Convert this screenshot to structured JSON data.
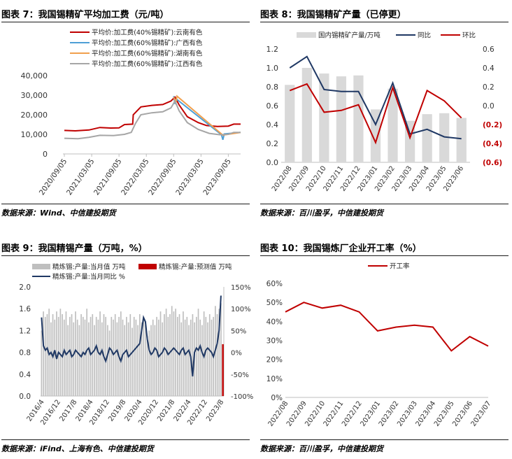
{
  "panels": [
    {
      "title": "图表 7：我国锡精矿平均加工费（元/吨）",
      "source": "数据来源：Wind、中信建投期货",
      "chart_data": {
        "type": "line",
        "title": "",
        "xlabel": "",
        "ylabel": "",
        "ylim": [
          0,
          40000
        ],
        "yticks": [
          "0",
          "10,000",
          "20,000",
          "30,000",
          "40,000"
        ],
        "x_ticks": [
          "2020/09/05",
          "2021/03/05",
          "2021/09/05",
          "2022/03/05",
          "2022/09/05",
          "2023/03/05",
          "2023/09/05"
        ],
        "legend_position": "top",
        "series": [
          {
            "name": "平均价:加工费(40%锡精矿):云南有色",
            "color": "#c00000",
            "points": [
              [
                0,
                12000
              ],
              [
                0.4,
                11800
              ],
              [
                0.9,
                12200
              ],
              [
                1.3,
                13500
              ],
              [
                1.7,
                13200
              ],
              [
                2.0,
                13300
              ],
              [
                2.2,
                15000
              ],
              [
                2.5,
                15200
              ],
              [
                2.52,
                20000
              ],
              [
                2.8,
                24000
              ],
              [
                3.2,
                24800
              ],
              [
                3.6,
                25200
              ],
              [
                3.9,
                27000
              ],
              [
                4.05,
                29000
              ],
              [
                4.2,
                25000
              ],
              [
                4.5,
                19000
              ],
              [
                4.9,
                16000
              ],
              [
                5.2,
                14500
              ],
              [
                5.6,
                14000
              ],
              [
                6.0,
                14200
              ],
              [
                6.2,
                15200
              ],
              [
                6.45,
                15200
              ]
            ]
          },
          {
            "name": "平均价:加工费(60%锡精矿):广西有色",
            "color": "#4e9fd6",
            "points": [
              [
                4.0,
                29500
              ],
              [
                4.05,
                25500
              ],
              [
                4.1,
                28000
              ],
              [
                5.75,
                9800
              ],
              [
                5.8,
                7200
              ],
              [
                5.85,
                10200
              ],
              [
                6.45,
                11000
              ]
            ]
          },
          {
            "name": "平均价:加工费(60%锡精矿):湖南有色",
            "color": "#f19f4d",
            "points": [
              [
                4.0,
                29000
              ],
              [
                4.08,
                26000
              ],
              [
                4.12,
                29500
              ],
              [
                5.8,
                9600
              ],
              [
                6.45,
                11000
              ]
            ]
          },
          {
            "name": "平均价:加工费(60%锡精矿):江西有色",
            "color": "#a6a6a6",
            "points": [
              [
                0,
                8000
              ],
              [
                0.5,
                7800
              ],
              [
                0.9,
                8500
              ],
              [
                1.3,
                9500
              ],
              [
                1.8,
                9400
              ],
              [
                2.2,
                10000
              ],
              [
                2.45,
                11000
              ],
              [
                2.6,
                15500
              ],
              [
                2.8,
                20000
              ],
              [
                3.2,
                21000
              ],
              [
                3.6,
                21500
              ],
              [
                3.9,
                23500
              ],
              [
                4.05,
                27000
              ],
              [
                4.2,
                22000
              ],
              [
                4.5,
                16000
              ],
              [
                4.9,
                12500
              ],
              [
                5.3,
                10500
              ],
              [
                5.7,
                9800
              ],
              [
                6.0,
                10000
              ],
              [
                6.2,
                11000
              ],
              [
                6.45,
                11000
              ]
            ]
          }
        ]
      }
    },
    {
      "title": "图表 8：我国锡精矿产量（已停更）",
      "source": "数据来源：百川盈孚，中信建投期货",
      "chart_data": {
        "type": "bar",
        "title": "",
        "categories": [
          "2022/08",
          "2022/09",
          "2022/10",
          "2022/11",
          "2022/12",
          "2023/01",
          "2023/02",
          "2023/03",
          "2023/04",
          "2023/05",
          "2023/06"
        ],
        "ylim_left": [
          0,
          1.2
        ],
        "yticks_left": [
          "0.0",
          "0.2",
          "0.4",
          "0.6",
          "0.8",
          "1.0",
          "1.2"
        ],
        "ylim_right": [
          -0.6,
          0.6
        ],
        "yticks_right": [
          "(0.6)",
          "(0.4)",
          "(0.2)",
          "0.0",
          "0.2",
          "0.4",
          "0.6"
        ],
        "legend_position": "top",
        "series": [
          {
            "name": "国内锡精矿产量/万吨",
            "kind": "bar",
            "axis": "left",
            "color": "#d9d9d9",
            "values": [
              0.82,
              1.0,
              0.94,
              0.91,
              0.92,
              0.56,
              0.78,
              0.44,
              0.51,
              0.52,
              0.47
            ]
          },
          {
            "name": "同比",
            "kind": "line",
            "axis": "right",
            "color": "#1f3864",
            "values": [
              0.4,
              0.52,
              0.17,
              0.15,
              0.15,
              -0.2,
              0.24,
              -0.3,
              -0.25,
              -0.33,
              -0.35
            ]
          },
          {
            "name": "环比",
            "kind": "line",
            "axis": "right",
            "color": "#c00000",
            "values": [
              0.16,
              0.23,
              -0.07,
              -0.05,
              0.01,
              -0.39,
              0.19,
              -0.34,
              0.16,
              0.05,
              -0.13
            ]
          }
        ]
      }
    },
    {
      "title": "图表 9：我国精锡产量（万吨，%）",
      "source": "数据来源：iFind、上海有色、中信建投期货",
      "chart_data": {
        "type": "bar",
        "title": "",
        "x_ticks": [
          "2016/4",
          "2016/12",
          "2017/8",
          "2018/4",
          "2018/12",
          "2019/8",
          "2020/4",
          "2020/12",
          "2021/8",
          "2022/4",
          "2022/12",
          "2023/8"
        ],
        "ylim_left": [
          0,
          2.0
        ],
        "yticks_left": [
          "0.0",
          "0.4",
          "0.8",
          "1.2",
          "1.6",
          "2.0"
        ],
        "ylim_right": [
          -1.0,
          1.5
        ],
        "yticks_right": [
          "-100%",
          "-50%",
          "0%",
          "50%",
          "100%",
          "150%"
        ],
        "legend_position": "top",
        "series": [
          {
            "name": "精炼锡:产量:当月值 万吨",
            "kind": "bar",
            "axis": "left",
            "color": "#bfbfbf",
            "values": [
              1.2,
              1.55,
              1.45,
              1.5,
              1.6,
              1.35,
              1.5,
              1.4,
              1.55,
              1.45,
              1.6,
              1.5,
              1.4,
              1.55,
              1.3,
              1.45,
              1.5,
              1.35,
              1.55,
              1.4,
              1.3,
              1.5,
              1.45,
              1.4,
              1.6,
              1.35,
              1.45,
              1.5,
              1.3,
              1.45,
              1.4,
              1.55,
              1.35,
              1.5,
              1.45,
              1.3,
              1.2,
              1.45,
              1.4,
              1.5,
              1.35,
              1.45,
              1.55,
              1.4,
              1.3,
              1.45,
              1.35,
              1.5,
              1.25,
              1.45,
              1.4,
              1.3,
              1.5,
              1.35,
              1.45,
              1.3,
              1.1,
              1.2,
              1.3,
              1.4,
              1.3,
              1.45,
              1.4,
              1.55,
              1.35,
              1.5,
              1.6,
              1.45,
              1.5,
              1.65,
              1.55,
              1.6,
              1.45,
              1.5,
              1.35,
              1.55,
              1.4,
              1.45,
              1.3,
              1.4,
              1.5,
              1.35,
              1.45,
              1.6,
              1.4,
              1.3,
              1.55,
              1.45,
              1.35,
              1.5,
              1.4,
              1.45,
              1.65,
              1.5,
              1.6,
              1.7
            ]
          },
          {
            "name": "精炼锡:产量:预测值 万吨",
            "kind": "bar",
            "axis": "left",
            "color": "#c00000",
            "values": [
              0.95
            ]
          },
          {
            "name": "精炼锡:产量:当月同比 %",
            "kind": "line",
            "axis": "right",
            "color": "#1f3864",
            "values": [
              0.8,
              0.15,
              0.05,
              0.1,
              -0.05,
              0.0,
              -0.1,
              0.05,
              -0.15,
              0.0,
              -0.05,
              -0.1,
              0.05,
              -0.05,
              0.0,
              0.05,
              -0.1,
              -0.05,
              0.05,
              0.0,
              -0.05,
              -0.1,
              0.0,
              -0.05,
              0.05,
              0.1,
              -0.05,
              0.0,
              0.05,
              0.15,
              0.0,
              -0.05,
              0.05,
              -0.1,
              -0.2,
              -0.05,
              0.1,
              0.05,
              -0.05,
              0.0,
              0.05,
              -0.1,
              -0.2,
              -0.05,
              0.0,
              0.05,
              -0.1,
              -0.05,
              0.0,
              0.05,
              0.1,
              0.15,
              0.2,
              0.5,
              0.8,
              0.7,
              0.3,
              0.05,
              -0.05,
              0.0,
              0.1,
              0.05,
              -0.1,
              -0.05,
              0.0,
              0.1,
              0.05,
              -0.05,
              0.0,
              0.05,
              0.1,
              0.05,
              0.0,
              -0.05,
              0.05,
              0.1,
              -0.05,
              0.0,
              0.05,
              -0.1,
              -0.55,
              0.0,
              0.1,
              0.05,
              0.15,
              0.0,
              -0.1,
              0.05,
              0.1,
              0.05,
              0.0,
              -0.1,
              0.05,
              0.2,
              0.5,
              1.3
            ]
          }
        ]
      }
    },
    {
      "title": "图表 10：我国锡炼厂企业开工率（%）",
      "source": "数据来源：百川盈孚，中信建投期货",
      "chart_data": {
        "type": "line",
        "title": "",
        "categories": [
          "2022/08",
          "2022/09",
          "2022/10",
          "2022/11",
          "2022/12",
          "2023/01",
          "2023/02",
          "2023/03",
          "2023/04",
          "2023/05",
          "2023/06",
          "2023/07"
        ],
        "ylim": [
          0,
          60
        ],
        "yticks": [
          "0%",
          "10%",
          "20%",
          "30%",
          "40%",
          "50%",
          "60%"
        ],
        "legend_position": "top",
        "series": [
          {
            "name": "开工率",
            "color": "#c00000",
            "values": [
              45,
              50,
              47,
              48.5,
              45,
              35,
              37,
              38,
              37,
              24.5,
              32,
              27
            ]
          }
        ]
      }
    }
  ]
}
